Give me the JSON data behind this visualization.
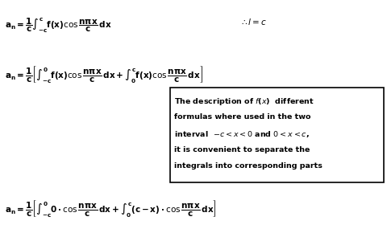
{
  "bg_color": "#ffffff",
  "text_color": "#000000",
  "box_color": "#000000",
  "figsize": [
    4.8,
    2.85
  ],
  "dpi": 100,
  "line1_left": "$\\mathbf{a_n = \\dfrac{1}{c}\\int_{-c}^{c} f(x)\\cos\\dfrac{n\\pi x}{c}\\,dx}$",
  "line1_right": "$\\therefore l = c$",
  "line2": "$\\mathbf{a_n = \\dfrac{1}{c}\\left[\\int_{-c}^{0} f(x)\\cos\\dfrac{n\\pi x}{c}\\,dx + \\int_{0}^{c} f(x)\\cos\\dfrac{n\\pi x}{c}\\,dx\\right]}$",
  "box_lines": [
    "The description of $\\mathit{f}$($\\mathit{x}$)  different",
    "formulas where used in the two",
    "interval  $-c < x < 0$ and $0 < x < c$,",
    "it is convenient to separate the",
    "integrals into corresponding parts"
  ],
  "line3": "$\\mathbf{a_n = \\dfrac{1}{c}\\left[\\int_{-c}^{0} 0 \\cdot\\cos\\dfrac{n\\pi x}{c}\\,dx + \\int_{0}^{c}(c-x)\\cdot\\cos\\dfrac{n\\pi x}{c}\\,dx\\right]}$"
}
